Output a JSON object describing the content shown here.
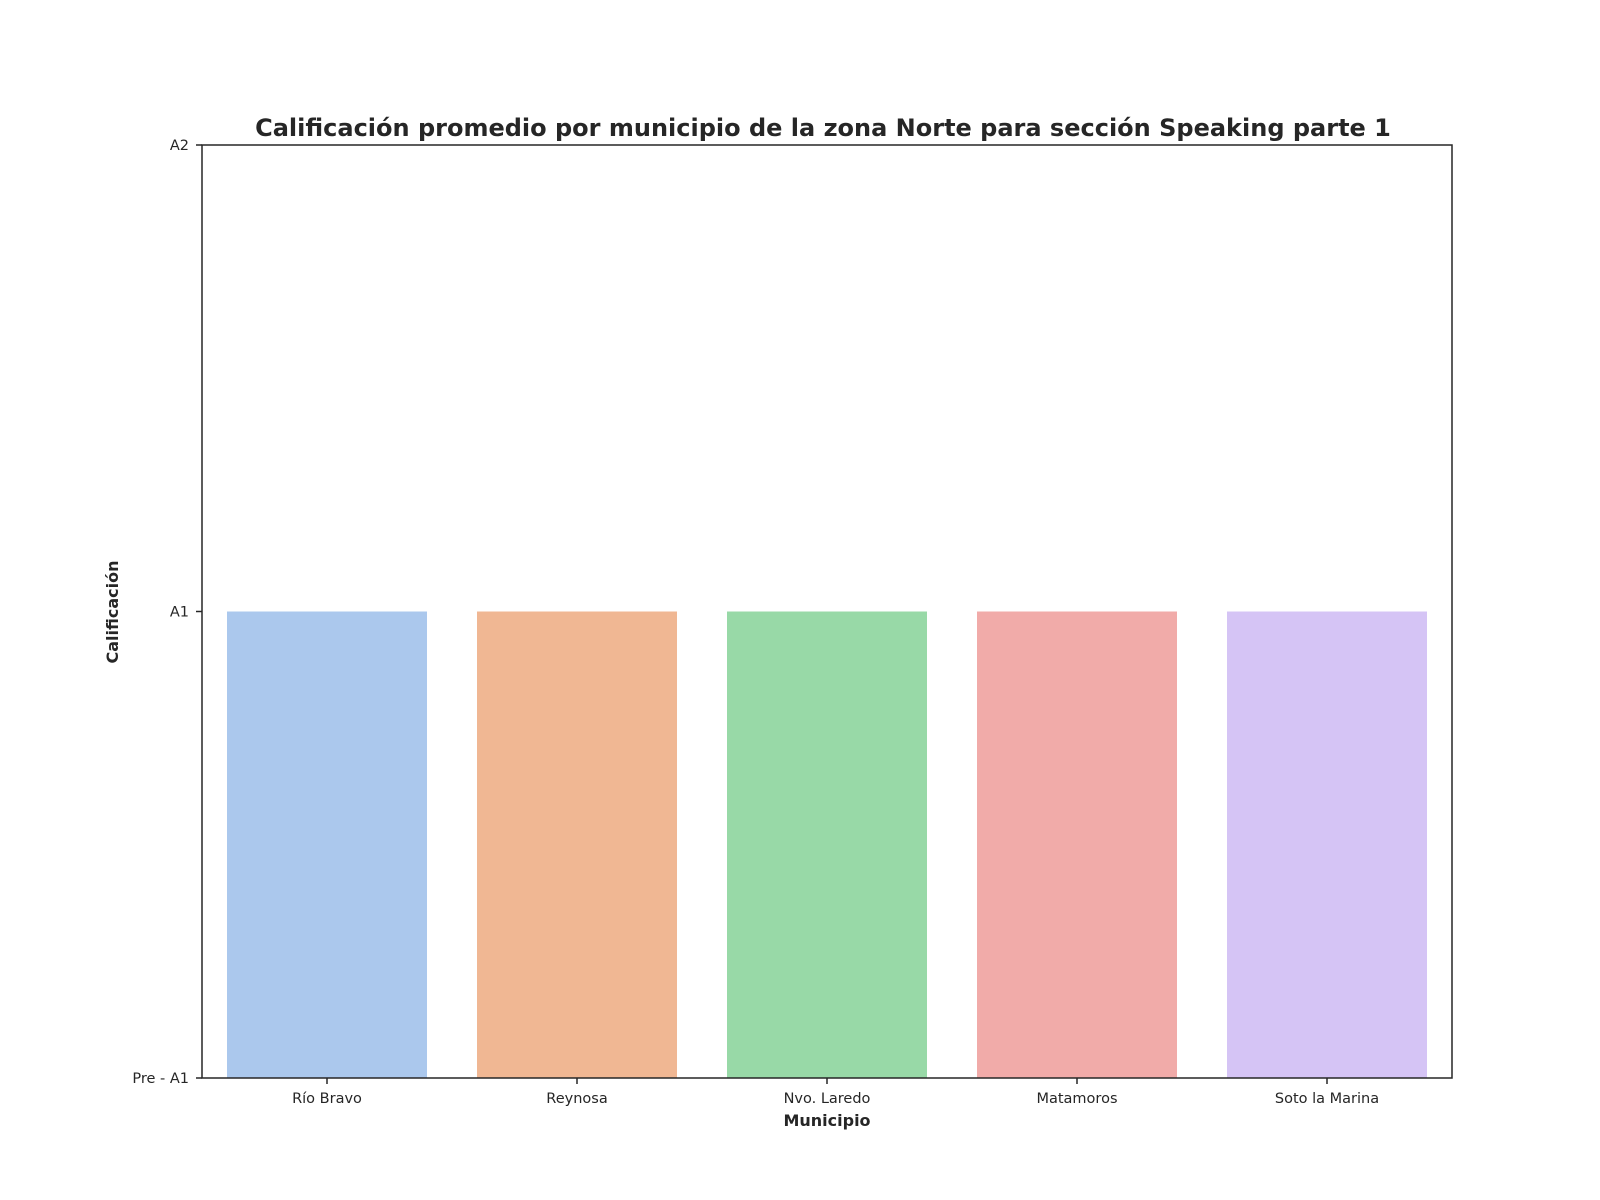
{
  "chart_data": {
    "type": "bar",
    "title": "Calificación promedio por municipio de la zona Norte para sección Speaking parte 1",
    "xlabel": "Municipio",
    "ylabel": "Calificación",
    "categories": [
      "Río Bravo",
      "Reynosa",
      "Nvo. Laredo",
      "Matamoros",
      "Soto la Marina"
    ],
    "values": [
      1,
      1,
      1,
      1,
      1
    ],
    "colors": [
      "#abc8ed",
      "#f0b793",
      "#98d9a7",
      "#f1aba9",
      "#d5c4f5"
    ],
    "ylim": [
      0,
      2
    ],
    "yticks": [
      0,
      1,
      2
    ],
    "ytick_labels": [
      "Pre - A1",
      "A1",
      "A2"
    ],
    "grid": false,
    "legend": "none"
  }
}
